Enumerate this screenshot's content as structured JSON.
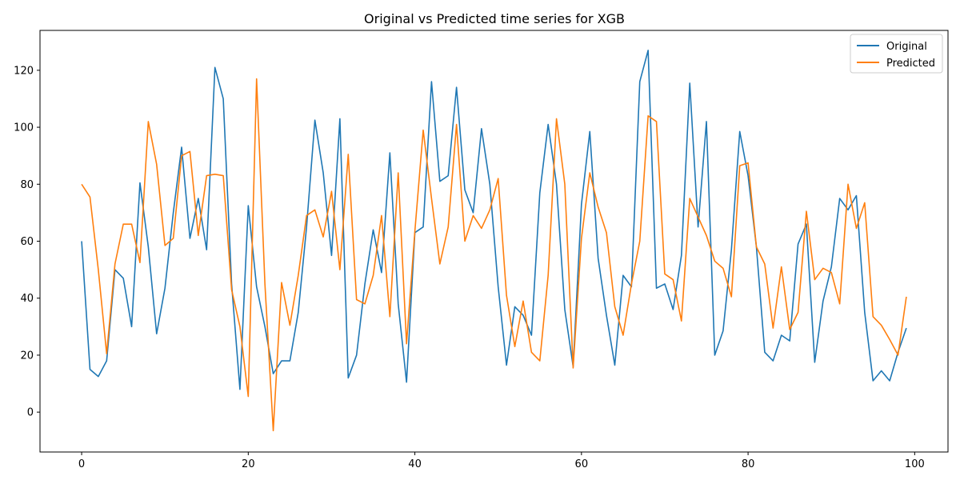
{
  "chart_data": {
    "type": "line",
    "title": "Original vs Predicted time series for XGB",
    "xlabel": "",
    "ylabel": "",
    "xlim": [
      -5,
      104
    ],
    "ylim": [
      -14,
      134
    ],
    "xticks": [
      0,
      20,
      40,
      60,
      80,
      100
    ],
    "yticks": [
      0,
      20,
      40,
      60,
      80,
      100,
      120
    ],
    "grid": false,
    "legend_placement": "top-right",
    "x": [
      0,
      1,
      2,
      3,
      4,
      5,
      6,
      7,
      8,
      9,
      10,
      11,
      12,
      13,
      14,
      15,
      16,
      17,
      18,
      19,
      20,
      21,
      22,
      23,
      24,
      25,
      26,
      27,
      28,
      29,
      30,
      31,
      32,
      33,
      34,
      35,
      36,
      37,
      38,
      39,
      40,
      41,
      42,
      43,
      44,
      45,
      46,
      47,
      48,
      49,
      50,
      51,
      52,
      53,
      54,
      55,
      56,
      57,
      58,
      59,
      60,
      61,
      62,
      63,
      64,
      65,
      66,
      67,
      68,
      69,
      70,
      71,
      72,
      73,
      74,
      75,
      76,
      77,
      78,
      79,
      80,
      81,
      82,
      83,
      84,
      85,
      86,
      87,
      88,
      89,
      90,
      91,
      92,
      93,
      94,
      95,
      96,
      97,
      98,
      99
    ],
    "series": [
      {
        "name": "Original",
        "color": "#1f77b4",
        "values": [
          60,
          15,
          12.5,
          18,
          50,
          47,
          30,
          80.5,
          58,
          27.5,
          43.5,
          70,
          93,
          61,
          75,
          57,
          121,
          110,
          45,
          8,
          72.5,
          44,
          30,
          13.5,
          18,
          18,
          35,
          65,
          102.5,
          84,
          55,
          103,
          12,
          20,
          45,
          64,
          49,
          91,
          38,
          10.5,
          63,
          65,
          116,
          81,
          83,
          114,
          78,
          70,
          99.5,
          80,
          44,
          16.5,
          37,
          34,
          27,
          77,
          101,
          80,
          36,
          16,
          73,
          98.5,
          54,
          34,
          16.5,
          48,
          44,
          116,
          127,
          43.5,
          45,
          36,
          55,
          115.5,
          65,
          102,
          20,
          28.5,
          57,
          98.5,
          83,
          58,
          21,
          18,
          27,
          25,
          59,
          66,
          17.5,
          39,
          51,
          75,
          71,
          76,
          35,
          11,
          14.5,
          11,
          21,
          29.5
        ]
      },
      {
        "name": "Predicted",
        "color": "#ff7f0e",
        "values": [
          80,
          75.5,
          50,
          20.5,
          52,
          66,
          66,
          52.5,
          102,
          87,
          58.5,
          61,
          90,
          91.5,
          62,
          83,
          83.5,
          83,
          43,
          30,
          5.5,
          117,
          45,
          -6.5,
          45.5,
          30.5,
          48,
          69,
          71,
          61.5,
          77.5,
          50,
          90.5,
          39.5,
          38,
          48,
          69,
          33.5,
          84,
          24,
          63.5,
          99,
          75,
          52,
          65,
          101,
          60,
          69,
          64.5,
          71,
          82,
          41,
          23,
          39,
          21,
          18,
          48,
          103,
          80,
          15.5,
          61,
          84,
          72,
          63,
          37,
          27,
          45,
          60,
          104,
          102,
          48.5,
          46.5,
          32,
          75,
          68.5,
          62,
          53,
          50.5,
          40.5,
          86.5,
          87.5,
          58,
          52,
          29.5,
          51,
          29,
          35,
          70.5,
          46.5,
          50.5,
          49,
          38,
          80,
          64.5,
          73.5,
          33.5,
          30.5,
          25.5,
          20,
          40.5
        ]
      }
    ]
  }
}
